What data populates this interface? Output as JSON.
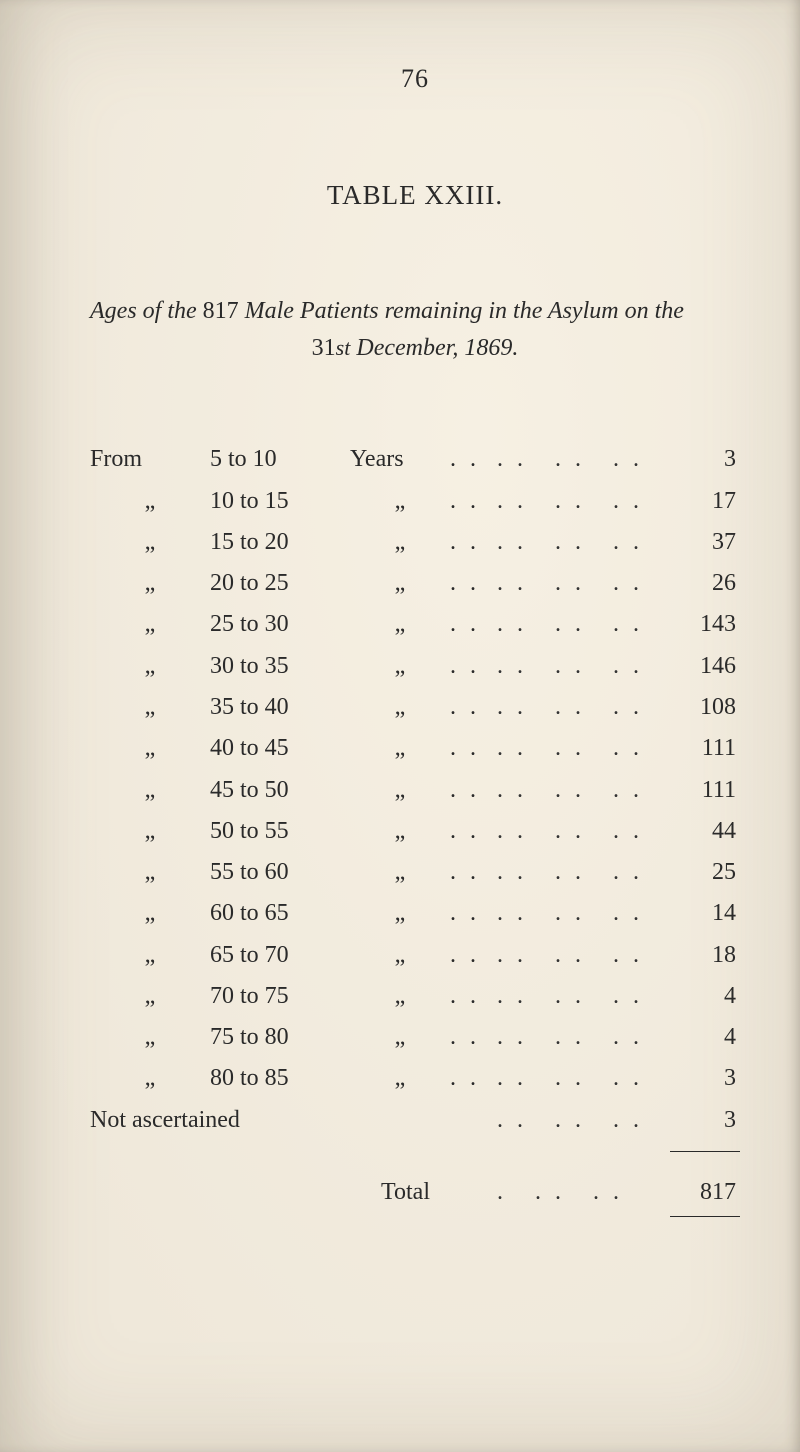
{
  "page_number": "76",
  "table_title": "TABLE XXIII.",
  "subtitle_line1_prefix": "Ages of the",
  "subtitle_count": "817",
  "subtitle_line1_middle": "Male Patients remaining in the Asylum on the",
  "subtitle_line2_prefix": "31",
  "subtitle_line2_st": "st",
  "subtitle_line2_rest": " December, 1869.",
  "from_word": "From",
  "ditto_mark": "„",
  "years_label": "Years",
  "dots2": ". .",
  "rows": [
    {
      "lead": "From",
      "range": "5 to 10",
      "years": "Years",
      "val": "3"
    },
    {
      "lead": "„",
      "range": "10 to 15",
      "years": "„",
      "val": "17"
    },
    {
      "lead": "„",
      "range": "15 to 20",
      "years": "„",
      "val": "37"
    },
    {
      "lead": "„",
      "range": "20 to 25",
      "years": "„",
      "val": "26"
    },
    {
      "lead": "„",
      "range": "25 to 30",
      "years": "„",
      "val": "143"
    },
    {
      "lead": "„",
      "range": "30 to 35",
      "years": "„",
      "val": "146"
    },
    {
      "lead": "„",
      "range": "35 to 40",
      "years": "„",
      "val": "108"
    },
    {
      "lead": "„",
      "range": "40 to 45",
      "years": "„",
      "val": "111"
    },
    {
      "lead": "„",
      "range": "45 to 50",
      "years": "„",
      "val": "111"
    },
    {
      "lead": "„",
      "range": "50 to 55",
      "years": "„",
      "val": "44"
    },
    {
      "lead": "„",
      "range": "55 to 60",
      "years": "„",
      "val": "25"
    },
    {
      "lead": "„",
      "range": "60 to 65",
      "years": "„",
      "val": "14"
    },
    {
      "lead": "„",
      "range": "65 to 70",
      "years": "„",
      "val": "18"
    },
    {
      "lead": "„",
      "range": "70 to 75",
      "years": "„",
      "val": "4"
    },
    {
      "lead": "„",
      "range": "75 to 80",
      "years": "„",
      "val": "4"
    },
    {
      "lead": "„",
      "range": "80 to 85",
      "years": "„",
      "val": "3"
    }
  ],
  "not_ascertained_label": "Not ascertained",
  "not_ascertained_val": "3",
  "total_label": "Total",
  "total_val": "817",
  "colors": {
    "paper": "#f2ece0",
    "ink": "#2a2a2a"
  },
  "fontsize": {
    "page_number": 26,
    "title": 27,
    "subtitle": 24,
    "body": 24
  }
}
